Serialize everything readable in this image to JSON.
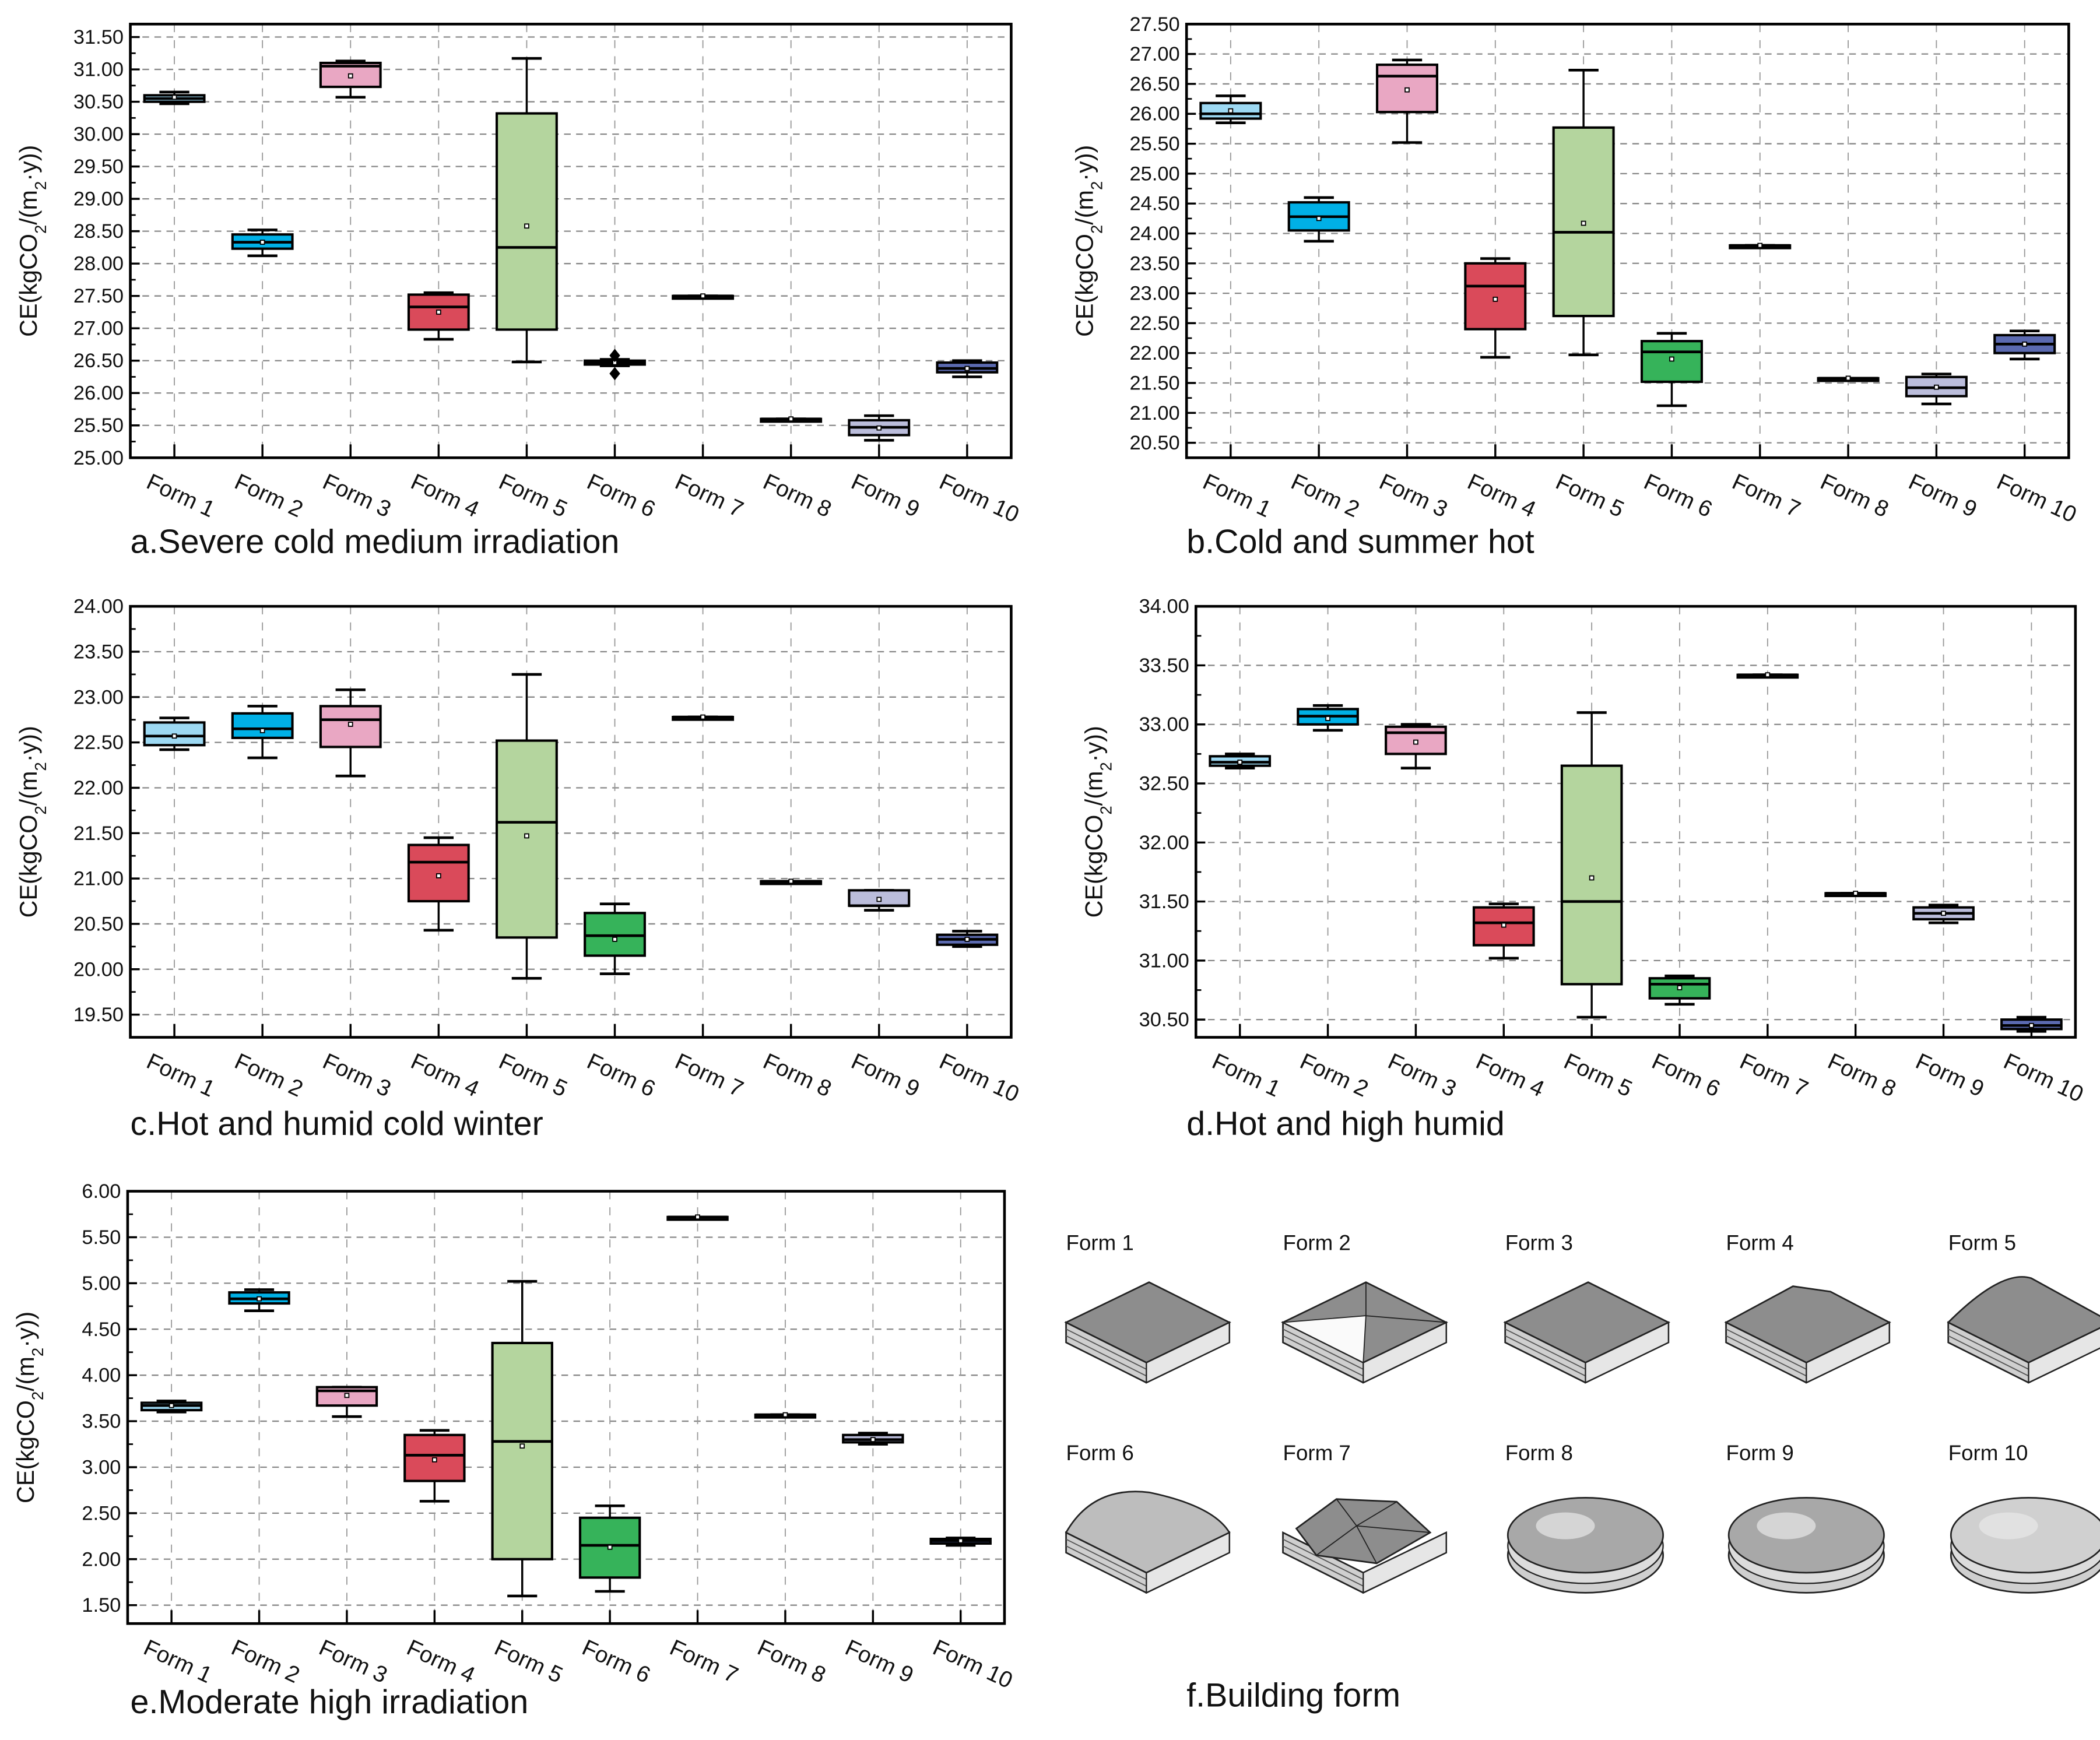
{
  "ylabel_parts": [
    "CE(kgCO",
    "2",
    "/(m",
    "2",
    "·y))"
  ],
  "forms": [
    "Form 1",
    "Form 2",
    "Form 3",
    "Form 4",
    "Form 5",
    "Form 6",
    "Form 7",
    "Form 8",
    "Form 9",
    "Form 10"
  ],
  "colors": [
    "#9dd9f3",
    "#00b0e6",
    "#e9a7c3",
    "#da4a5a",
    "#b4d59e",
    "#36b35a",
    "#222222",
    "#222222",
    "#bbbddb",
    "#5b6ab0"
  ],
  "chart_data": [
    {
      "type": "box",
      "title": "a.Severe cold medium irradiation",
      "ylim": [
        25.0,
        31.7
      ],
      "yticks": [
        25.0,
        25.5,
        26.0,
        26.5,
        27.0,
        27.5,
        28.0,
        28.5,
        29.0,
        29.5,
        30.0,
        30.5,
        31.0,
        31.5
      ],
      "boxes": [
        [
          30.47,
          30.5,
          30.55,
          30.6,
          30.65,
          30.57
        ],
        [
          28.12,
          28.23,
          28.33,
          28.45,
          28.52,
          28.33
        ],
        [
          30.57,
          30.73,
          31.05,
          31.1,
          31.13,
          30.9
        ],
        [
          26.83,
          26.98,
          27.33,
          27.52,
          27.55,
          27.25
        ],
        [
          26.48,
          26.98,
          28.25,
          30.32,
          31.17,
          28.58
        ],
        [
          26.42,
          26.44,
          26.47,
          26.5,
          26.52,
          26.47
        ],
        [
          27.5,
          27.5,
          27.5,
          27.5,
          27.5,
          27.5
        ],
        [
          25.6,
          25.6,
          25.6,
          25.6,
          25.6,
          25.6
        ],
        [
          25.27,
          25.35,
          25.47,
          25.58,
          25.65,
          25.46
        ],
        [
          26.25,
          26.32,
          26.38,
          26.47,
          26.5,
          26.38
        ]
      ],
      "outliers": [
        [],
        [],
        [],
        [],
        [],
        [
          26.3,
          26.58
        ],
        [],
        [],
        [],
        []
      ]
    },
    {
      "type": "box",
      "title": "b.Cold and summer hot",
      "ylim": [
        20.25,
        27.5
      ],
      "yticks": [
        20.5,
        21.0,
        21.5,
        22.0,
        22.5,
        23.0,
        23.5,
        24.0,
        24.5,
        25.0,
        25.5,
        26.0,
        26.5,
        27.0,
        27.5
      ],
      "boxes": [
        [
          25.85,
          25.92,
          26.0,
          26.18,
          26.3,
          26.05
        ],
        [
          23.87,
          24.05,
          24.28,
          24.52,
          24.6,
          24.25
        ],
        [
          25.52,
          26.03,
          26.63,
          26.82,
          26.9,
          26.4
        ],
        [
          21.93,
          22.4,
          23.12,
          23.5,
          23.58,
          22.9
        ],
        [
          21.97,
          22.62,
          24.02,
          25.77,
          26.73,
          24.17
        ],
        [
          21.12,
          21.52,
          22.02,
          22.2,
          22.33,
          21.9
        ],
        [
          23.8,
          23.8,
          23.8,
          23.8,
          23.8,
          23.8
        ],
        [
          21.58,
          21.58,
          21.58,
          21.58,
          21.58,
          21.58
        ],
        [
          21.15,
          21.28,
          21.42,
          21.6,
          21.65,
          21.43
        ],
        [
          21.9,
          22.0,
          22.15,
          22.3,
          22.37,
          22.15
        ]
      ],
      "outliers": [
        [],
        [],
        [],
        [],
        [],
        [],
        [],
        [],
        [],
        []
      ]
    },
    {
      "type": "box",
      "title": "c.Hot and humid cold winter",
      "ylim": [
        19.25,
        24.0
      ],
      "yticks": [
        19.5,
        20.0,
        20.5,
        21.0,
        21.5,
        22.0,
        22.5,
        23.0,
        23.5,
        24.0
      ],
      "boxes": [
        [
          22.42,
          22.47,
          22.57,
          22.72,
          22.77,
          22.57
        ],
        [
          22.33,
          22.55,
          22.65,
          22.82,
          22.9,
          22.63
        ],
        [
          22.13,
          22.45,
          22.75,
          22.9,
          23.08,
          22.7
        ],
        [
          20.43,
          20.75,
          21.18,
          21.37,
          21.45,
          21.03
        ],
        [
          19.9,
          20.35,
          21.62,
          22.52,
          23.25,
          21.47
        ],
        [
          19.95,
          20.15,
          20.37,
          20.62,
          20.72,
          20.33
        ],
        [
          22.78,
          22.78,
          22.78,
          22.78,
          22.78,
          22.78
        ],
        [
          20.97,
          20.97,
          20.97,
          20.97,
          20.97,
          20.97
        ],
        [
          20.65,
          20.7,
          20.7,
          20.87,
          20.87,
          20.77
        ],
        [
          20.25,
          20.27,
          20.33,
          20.38,
          20.42,
          20.33
        ]
      ],
      "outliers": [
        [],
        [],
        [],
        [],
        [],
        [],
        [],
        [],
        [],
        []
      ]
    },
    {
      "type": "box",
      "title": "d.Hot and high humid",
      "ylim": [
        30.35,
        34.0
      ],
      "yticks": [
        30.5,
        31.0,
        31.5,
        32.0,
        32.5,
        33.0,
        33.5,
        34.0
      ],
      "boxes": [
        [
          32.63,
          32.65,
          32.68,
          32.73,
          32.75,
          32.68
        ],
        [
          32.95,
          33.0,
          33.07,
          33.13,
          33.16,
          33.05
        ],
        [
          32.63,
          32.75,
          32.93,
          32.98,
          33.0,
          32.85
        ],
        [
          31.02,
          31.13,
          31.32,
          31.45,
          31.48,
          31.3
        ],
        [
          30.52,
          30.8,
          31.5,
          32.65,
          33.1,
          31.7
        ],
        [
          30.63,
          30.68,
          30.8,
          30.85,
          30.87,
          30.77
        ],
        [
          33.42,
          33.42,
          33.42,
          33.42,
          33.42,
          33.42
        ],
        [
          31.57,
          31.57,
          31.57,
          31.57,
          31.57,
          31.57
        ],
        [
          31.32,
          31.35,
          31.4,
          31.45,
          31.47,
          31.4
        ],
        [
          30.4,
          30.42,
          30.45,
          30.5,
          30.52,
          30.45
        ]
      ],
      "outliers": [
        [],
        [],
        [],
        [],
        [],
        [],
        [],
        [],
        [],
        []
      ]
    },
    {
      "type": "box",
      "title": "e.Moderate high irradiation",
      "ylim": [
        1.3,
        6.0
      ],
      "yticks": [
        1.5,
        2.0,
        2.5,
        3.0,
        3.5,
        4.0,
        4.5,
        5.0,
        5.5,
        6.0
      ],
      "boxes": [
        [
          3.6,
          3.62,
          3.67,
          3.7,
          3.72,
          3.67
        ],
        [
          4.7,
          4.78,
          4.83,
          4.9,
          4.93,
          4.83
        ],
        [
          3.55,
          3.67,
          3.83,
          3.87,
          3.87,
          3.78
        ],
        [
          2.63,
          2.85,
          3.13,
          3.35,
          3.4,
          3.08
        ],
        [
          1.6,
          2.0,
          3.28,
          4.35,
          5.02,
          3.23
        ],
        [
          1.65,
          1.8,
          2.15,
          2.45,
          2.58,
          2.13
        ],
        [
          5.72,
          5.72,
          5.72,
          5.72,
          5.72,
          5.72
        ],
        [
          3.57,
          3.57,
          3.57,
          3.57,
          3.57,
          3.57
        ],
        [
          3.25,
          3.27,
          3.3,
          3.35,
          3.37,
          3.3
        ],
        [
          2.15,
          2.17,
          2.2,
          2.22,
          2.23,
          2.2
        ]
      ],
      "outliers": [
        [],
        [],
        [],
        [],
        [],
        [],
        [],
        [],
        [],
        []
      ]
    }
  ],
  "building_panel": {
    "title": "f.Building form",
    "labels": [
      "Form 1",
      "Form 2",
      "Form 3",
      "Form 4",
      "Form 5",
      "Form 6",
      "Form 7",
      "Form 8",
      "Form 9",
      "Form 10"
    ]
  }
}
